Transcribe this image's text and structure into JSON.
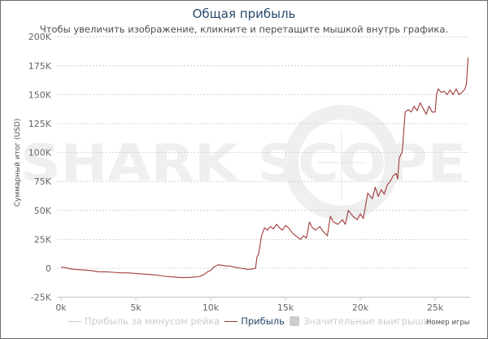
{
  "header": {
    "title": "Общая прибыль",
    "subtitle": "Чтобы увеличить изображение, кликните и перетащите мышкой внутрь графика."
  },
  "watermark": "SHARK SCOPE",
  "legend": {
    "items": [
      {
        "label": "Прибыль за минусом рейка",
        "state": "hidden",
        "color": "#cccccc",
        "symbol": "line"
      },
      {
        "label": "Прибыль",
        "state": "visible",
        "color": "#a03a3a",
        "symbol": "line"
      },
      {
        "label": "Значительные выигрыши",
        "state": "hidden",
        "color": "#cccccc",
        "symbol": "box"
      }
    ]
  },
  "axes": {
    "x_title": "Номер игры",
    "y_title": "Суммарный итог (USD)"
  },
  "colors": {
    "title": "#274b6d",
    "series_line": "#a03a3a",
    "grid": "#c8c8c8",
    "watermark": "#efefef"
  },
  "chart_data": {
    "type": "line",
    "title": "Общая прибыль",
    "subtitle": "Чтобы увеличить изображение, кликните и перетащите мышкой внутрь графика.",
    "xlabel": "Номер игры",
    "ylabel": "Суммарный итог (USD)",
    "xlim": [
      0,
      27300
    ],
    "ylim": [
      -25000,
      200000
    ],
    "x_ticks": [
      "0k",
      "5k",
      "10k",
      "15k",
      "20k",
      "25k"
    ],
    "y_ticks": [
      "-25K",
      "0",
      "25K",
      "50K",
      "75K",
      "100K",
      "125K",
      "150K",
      "175K",
      "200K"
    ],
    "grid": true,
    "legend_position": "bottom",
    "series": [
      {
        "name": "Прибыль",
        "x": [
          0,
          300,
          600,
          1000,
          1500,
          2000,
          2500,
          3000,
          3500,
          4000,
          4500,
          5000,
          5500,
          6000,
          6500,
          7000,
          7500,
          8000,
          8500,
          9000,
          9300,
          9600,
          9800,
          10000,
          10200,
          10500,
          10800,
          11000,
          11300,
          11600,
          12000,
          12300,
          12500,
          12800,
          13000,
          13100,
          13200,
          13400,
          13600,
          13800,
          14000,
          14200,
          14400,
          14600,
          14800,
          15000,
          15200,
          15500,
          15800,
          16000,
          16200,
          16400,
          16600,
          16800,
          17000,
          17300,
          17500,
          17800,
          18000,
          18200,
          18500,
          18800,
          19000,
          19200,
          19500,
          19800,
          20000,
          20200,
          20500,
          20800,
          21000,
          21200,
          21400,
          21600,
          21800,
          22000,
          22200,
          22400,
          22500,
          22600,
          22700,
          22800,
          23000,
          23200,
          23400,
          23600,
          23800,
          24000,
          24200,
          24400,
          24600,
          24800,
          25000,
          25100,
          25200,
          25400,
          25600,
          25800,
          26000,
          26200,
          26400,
          26600,
          26800,
          27000,
          27100,
          27200
        ],
        "y": [
          1000,
          500,
          -500,
          -1000,
          -1500,
          -2000,
          -3000,
          -3000,
          -3500,
          -4000,
          -4000,
          -4500,
          -5000,
          -5500,
          -6000,
          -7000,
          -7500,
          -8000,
          -8000,
          -7500,
          -7000,
          -5000,
          -3000,
          -2000,
          1000,
          3000,
          2500,
          2000,
          2000,
          1000,
          0,
          -500,
          -1000,
          -500,
          0,
          10000,
          12000,
          28000,
          35000,
          33000,
          36000,
          34000,
          38000,
          35000,
          33000,
          37000,
          35000,
          30000,
          27000,
          25000,
          28000,
          26000,
          40000,
          35000,
          33000,
          36000,
          32000,
          28000,
          45000,
          40000,
          38000,
          42000,
          38000,
          50000,
          45000,
          42000,
          47000,
          43000,
          65000,
          60000,
          70000,
          62000,
          68000,
          64000,
          72000,
          75000,
          80000,
          82000,
          77000,
          95000,
          98000,
          100000,
          135000,
          137000,
          135000,
          140000,
          136000,
          143000,
          138000,
          133000,
          140000,
          135000,
          135000,
          150000,
          155000,
          152000,
          153000,
          150000,
          154000,
          150000,
          155000,
          150000,
          152000,
          155000,
          160000,
          182000
        ]
      }
    ]
  }
}
